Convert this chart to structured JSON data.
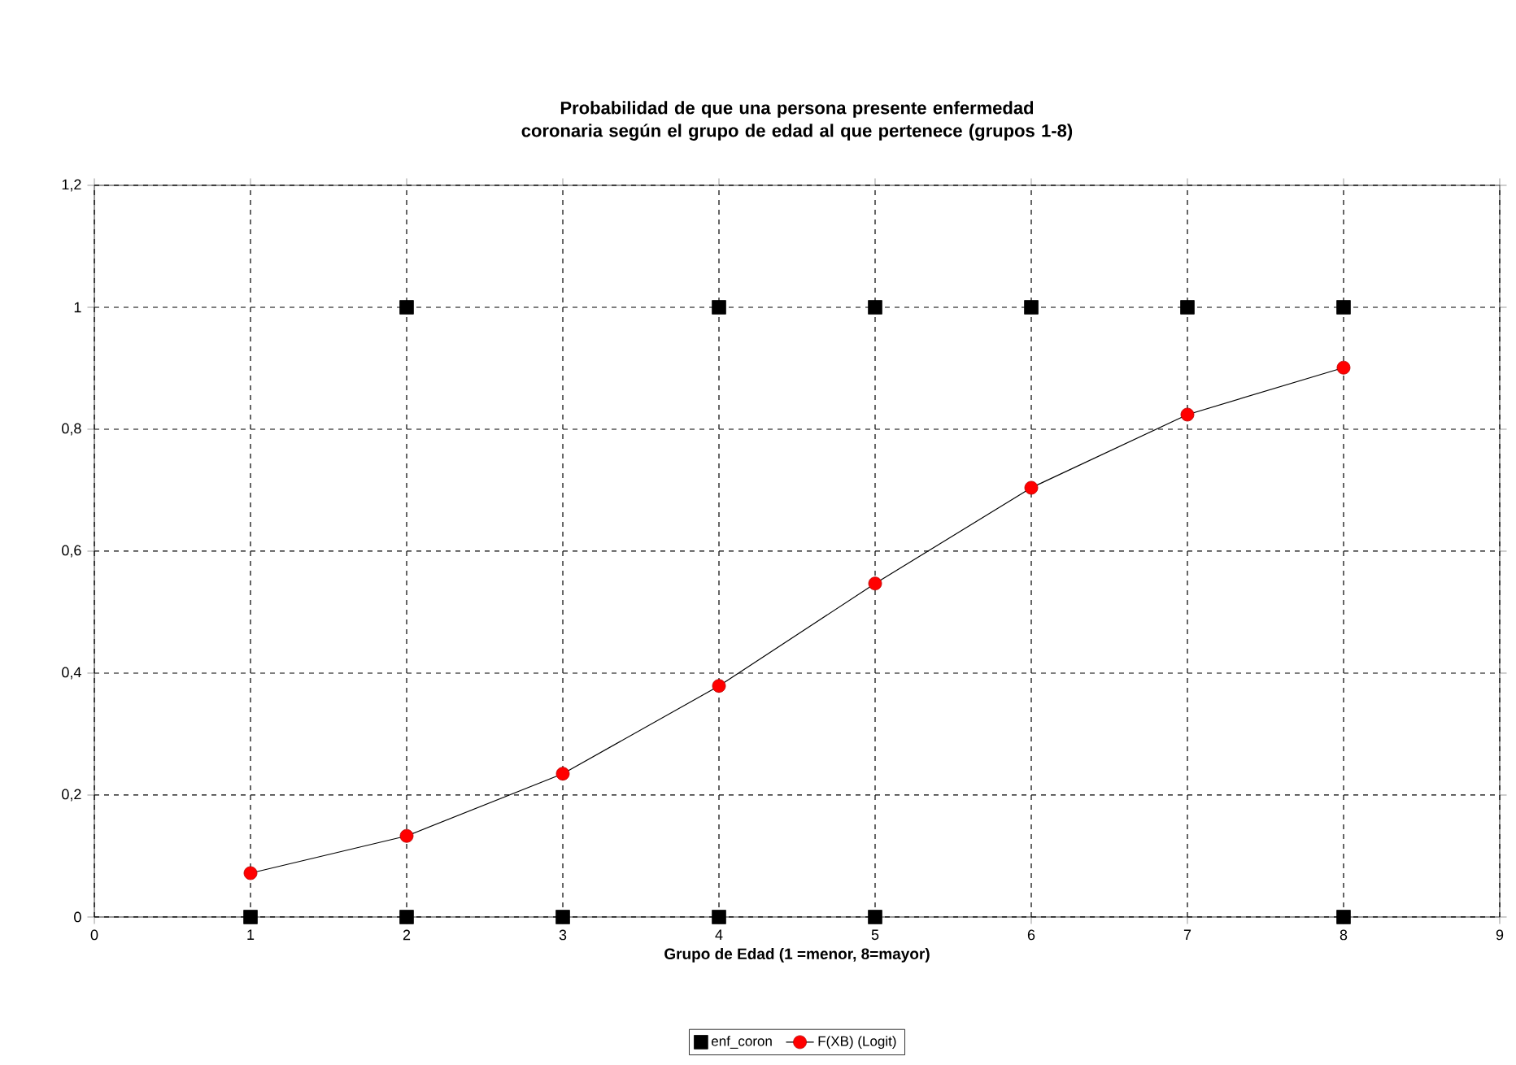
{
  "chart_data": {
    "type": "line",
    "title": "Probabilidad de que una persona presente enfermedad coronaria según el grupo de edad al que pertenece (grupos 1-8)",
    "xlabel": "Grupo de Edad (1 =menor, 8=mayor)",
    "xlim": [
      0,
      9
    ],
    "xticks": [
      0,
      1,
      2,
      3,
      4,
      5,
      6,
      7,
      8,
      9
    ],
    "ylim": [
      0,
      1.2
    ],
    "yticks": [
      0,
      {
        "value": 0.2,
        "label": "0,2"
      },
      {
        "value": 0.4,
        "label": "0,4"
      },
      {
        "value": 0.6,
        "label": "0,6"
      },
      {
        "value": 0.8,
        "label": "0,8"
      },
      1,
      {
        "value": 1.2,
        "label": "1,2"
      }
    ],
    "grid": true,
    "legend": "bottom",
    "series": [
      {
        "name": "enf_coron",
        "type": "scatter",
        "marker": "square",
        "color": "#000000",
        "x": [
          1,
          2,
          2,
          3,
          4,
          4,
          5,
          5,
          6,
          7,
          8,
          8
        ],
        "values": [
          0,
          0,
          1,
          0,
          0,
          1,
          0,
          1,
          1,
          1,
          0,
          1
        ]
      },
      {
        "name": "F(XB) (Logit)",
        "marker": "circle",
        "line_style": "solid",
        "color": "#ff0000",
        "x": [
          1,
          2,
          3,
          4,
          5,
          6,
          7,
          8
        ],
        "values": [
          0.072,
          0.133,
          0.235,
          0.379,
          0.547,
          0.704,
          0.824,
          0.901
        ]
      }
    ]
  }
}
